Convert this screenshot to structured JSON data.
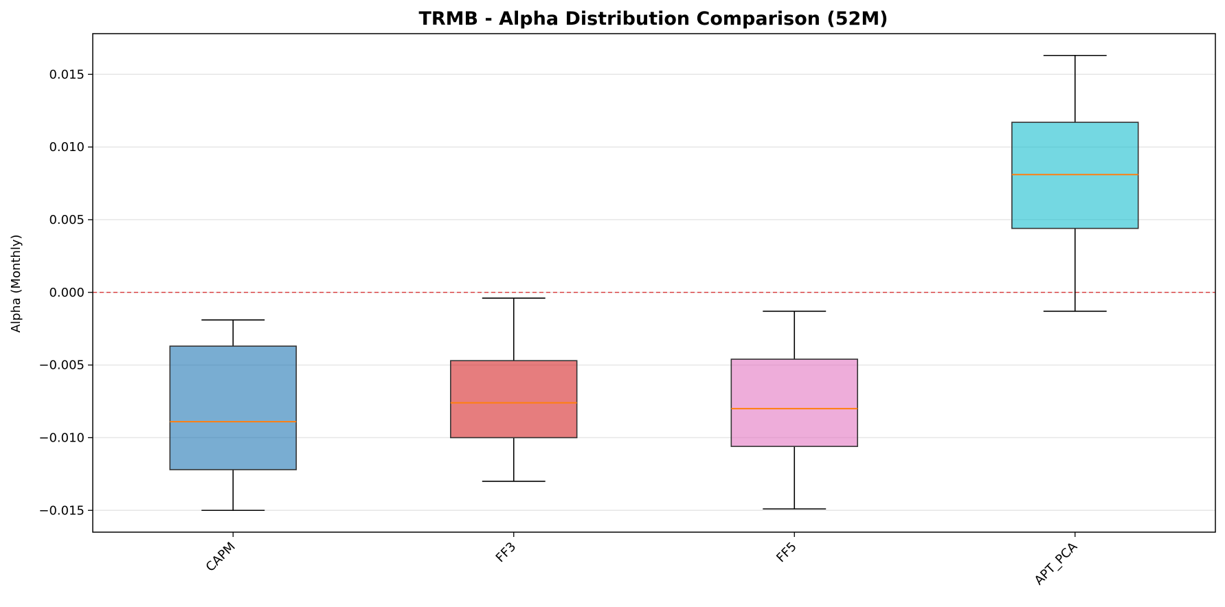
{
  "chart_data": {
    "type": "boxplot",
    "title": "TRMB - Alpha Distribution Comparison (52M)",
    "xlabel": "",
    "ylabel": "Alpha (Monthly)",
    "ylim": [
      -0.0165,
      0.0178
    ],
    "yticks": [
      -0.015,
      -0.01,
      -0.005,
      0.0,
      0.005,
      0.01,
      0.015
    ],
    "ytick_labels": [
      "−0.015",
      "−0.010",
      "−0.005",
      "0.000",
      "0.005",
      "0.010",
      "0.015"
    ],
    "grid": "y",
    "reference_line": {
      "y": 0.0,
      "color": "#d62728",
      "style": "dashed"
    },
    "categories": [
      "CAPM",
      "FF3",
      "FF5",
      "APT_PCA"
    ],
    "boxes": [
      {
        "label": "CAPM",
        "whisker_low": -0.015,
        "q1": -0.0122,
        "median": -0.0089,
        "q3": -0.0037,
        "whisker_high": -0.0019,
        "color": "#1f77b4"
      },
      {
        "label": "FF3",
        "whisker_low": -0.013,
        "q1": -0.01,
        "median": -0.0076,
        "q3": -0.0047,
        "whisker_high": -0.0004,
        "color": "#d62728"
      },
      {
        "label": "FF5",
        "whisker_low": -0.0149,
        "q1": -0.0106,
        "median": -0.008,
        "q3": -0.0046,
        "whisker_high": -0.0013,
        "color": "#e377c2"
      },
      {
        "label": "APT_PCA",
        "whisker_low": -0.0013,
        "q1": 0.0044,
        "median": 0.0081,
        "q3": 0.0117,
        "whisker_high": 0.0163,
        "color": "#17becf"
      }
    ],
    "median_color": "#ff7f0e"
  }
}
